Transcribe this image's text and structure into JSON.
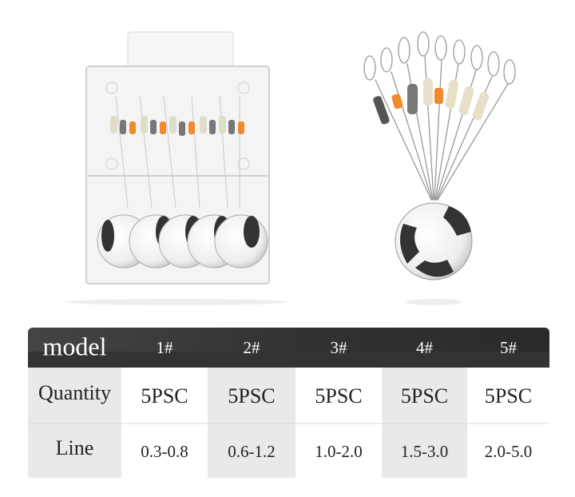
{
  "table": {
    "header": [
      "model",
      "1#",
      "2#",
      "3#",
      "4#",
      "5#"
    ],
    "rows": [
      [
        "Quantity",
        "5PSC",
        "5PSC",
        "5PSC",
        "5PSC",
        "5PSC"
      ],
      [
        "Line",
        "0.3-0.8",
        "0.6-1.2",
        "1.0-2.0",
        "1.5-3.0",
        "2.0-5.0"
      ]
    ]
  }
}
